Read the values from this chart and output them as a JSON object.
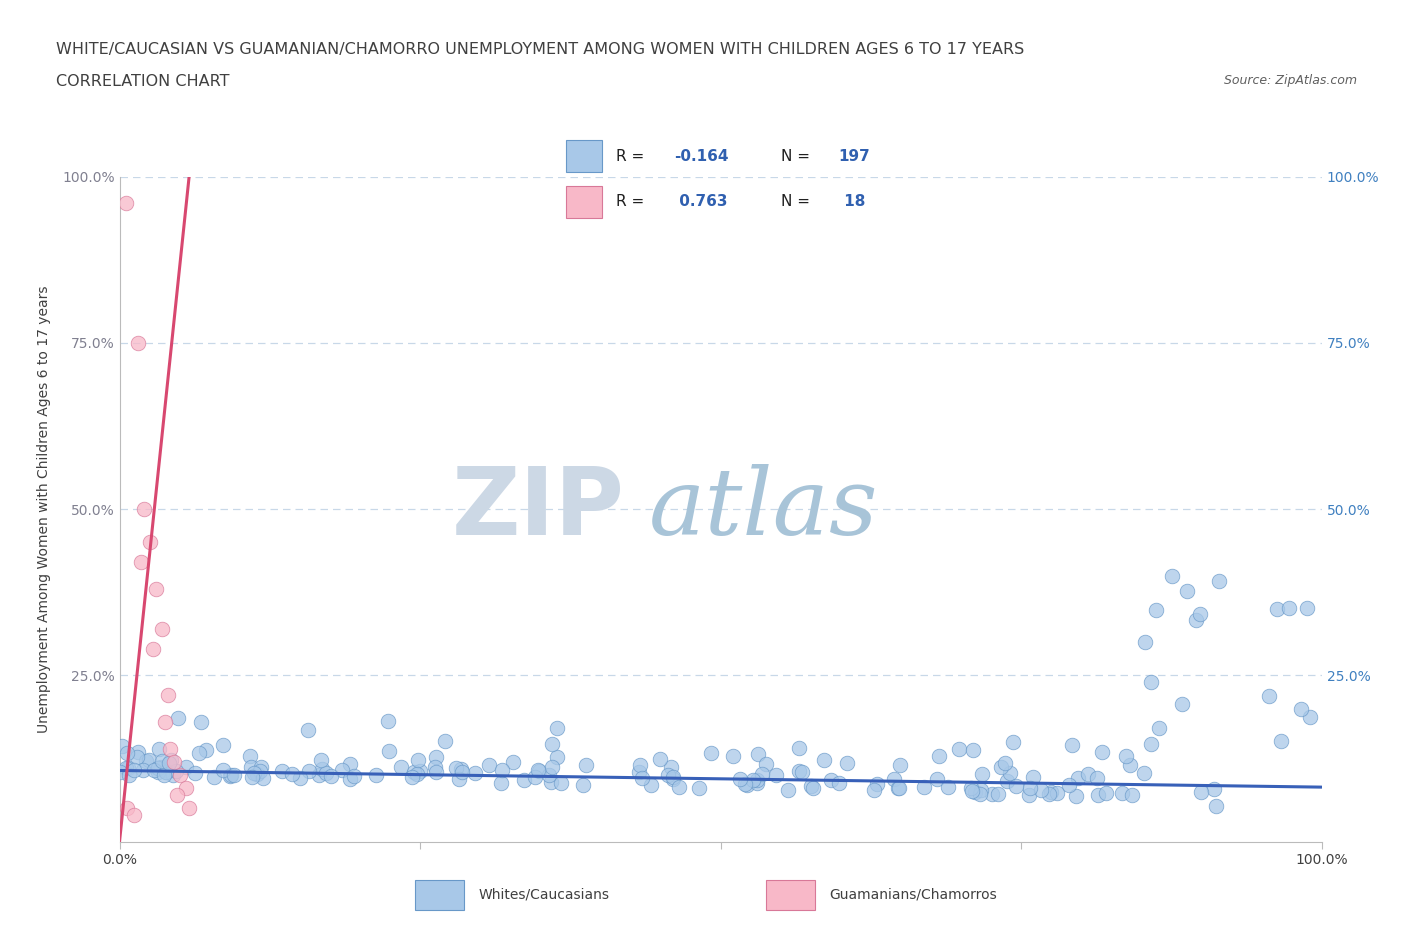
{
  "title_line1": "WHITE/CAUCASIAN VS GUAMANIAN/CHAMORRO UNEMPLOYMENT AMONG WOMEN WITH CHILDREN AGES 6 TO 17 YEARS",
  "title_line2": "CORRELATION CHART",
  "source_text": "Source: ZipAtlas.com",
  "ylabel": "Unemployment Among Women with Children Ages 6 to 17 years",
  "xlim": [
    0,
    1.0
  ],
  "ylim": [
    0,
    1.0
  ],
  "blue_R": -0.164,
  "blue_N": 197,
  "pink_R": 0.763,
  "pink_N": 18,
  "blue_color": "#a8c8e8",
  "blue_edge_color": "#6898c8",
  "pink_color": "#f8b8c8",
  "pink_edge_color": "#d87898",
  "blue_line_color": "#3860b8",
  "pink_line_color": "#d84870",
  "grid_color": "#c8d8e8",
  "watermark_zip_color": "#c8d8e8",
  "watermark_atlas_color": "#a8c0d8",
  "background_color": "#ffffff",
  "title_color": "#404040",
  "legend_R_color": "#3060b0",
  "legend_N_color": "#3060b0",
  "right_tick_color": "#4080c0",
  "left_tick_color": "#808090"
}
